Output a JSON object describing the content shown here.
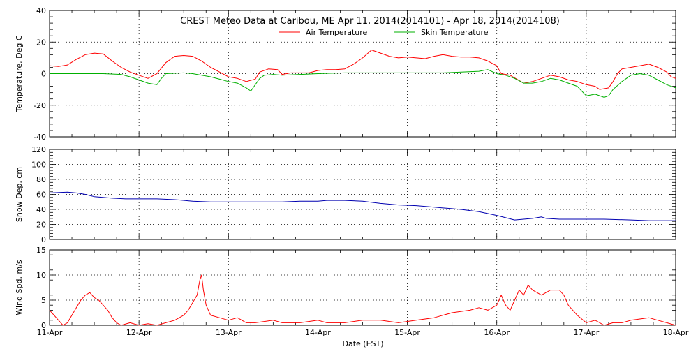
{
  "chart_data": {
    "type": "line",
    "title": "CREST Meteo Data at Caribou, ME   Apr 11, 2014(2014101) - Apr 18, 2014(2014108)",
    "xlabel": "Date (EST)",
    "x_ticks": [
      "11-Apr",
      "12-Apr",
      "13-Apr",
      "14-Apr",
      "15-Apr",
      "16-Apr",
      "17-Apr",
      "18-Apr"
    ],
    "xlim": [
      "11-Apr",
      "18-Apr"
    ],
    "grid": true,
    "colors": {
      "air": "#ff0000",
      "skin": "#00b000",
      "snow": "#0000b0",
      "wind": "#ff0000"
    },
    "panels": [
      {
        "id": "temperature",
        "ylabel": "Temperature, Deg C",
        "ylim": [
          -40,
          40
        ],
        "y_ticks": [
          -40,
          -20,
          0,
          20,
          40
        ],
        "legend": "top-center",
        "series": [
          {
            "name": "Air Temperature",
            "color": "air",
            "points": [
              [
                0,
                5
              ],
              [
                0.1,
                4.5
              ],
              [
                0.2,
                5.5
              ],
              [
                0.3,
                9
              ],
              [
                0.4,
                12
              ],
              [
                0.5,
                13
              ],
              [
                0.6,
                12.5
              ],
              [
                0.7,
                8
              ],
              [
                0.8,
                4
              ],
              [
                0.9,
                1
              ],
              [
                1.0,
                -1
              ],
              [
                1.1,
                -3
              ],
              [
                1.2,
                0
              ],
              [
                1.3,
                7
              ],
              [
                1.4,
                11
              ],
              [
                1.5,
                11.5
              ],
              [
                1.6,
                11
              ],
              [
                1.7,
                8
              ],
              [
                1.8,
                4
              ],
              [
                1.9,
                1
              ],
              [
                2.0,
                -2
              ],
              [
                2.1,
                -3
              ],
              [
                2.2,
                -5
              ],
              [
                2.3,
                -3.5
              ],
              [
                2.35,
                1
              ],
              [
                2.45,
                3
              ],
              [
                2.55,
                2.5
              ],
              [
                2.6,
                -0.5
              ],
              [
                2.7,
                0.5
              ],
              [
                2.8,
                0.5
              ],
              [
                2.9,
                0.5
              ],
              [
                3.0,
                2
              ],
              [
                3.1,
                2.5
              ],
              [
                3.2,
                2.5
              ],
              [
                3.3,
                3
              ],
              [
                3.4,
                6
              ],
              [
                3.5,
                10
              ],
              [
                3.6,
                15
              ],
              [
                3.7,
                13
              ],
              [
                3.8,
                11
              ],
              [
                3.9,
                10
              ],
              [
                4.0,
                10.5
              ],
              [
                4.1,
                10
              ],
              [
                4.2,
                9.5
              ],
              [
                4.3,
                11
              ],
              [
                4.4,
                12
              ],
              [
                4.5,
                11
              ],
              [
                4.6,
                10.5
              ],
              [
                4.7,
                10.5
              ],
              [
                4.8,
                10
              ],
              [
                4.9,
                8
              ],
              [
                5.0,
                5
              ],
              [
                5.05,
                0
              ],
              [
                5.15,
                -1
              ],
              [
                5.3,
                -6
              ],
              [
                5.4,
                -5
              ],
              [
                5.5,
                -3
              ],
              [
                5.6,
                -1
              ],
              [
                5.7,
                -2
              ],
              [
                5.8,
                -4
              ],
              [
                5.9,
                -5
              ],
              [
                6.0,
                -7
              ],
              [
                6.1,
                -8
              ],
              [
                6.15,
                -10
              ],
              [
                6.25,
                -9
              ],
              [
                6.3,
                -5
              ],
              [
                6.35,
                0
              ],
              [
                6.4,
                3
              ],
              [
                6.5,
                4
              ],
              [
                6.6,
                5
              ],
              [
                6.7,
                6
              ],
              [
                6.8,
                4
              ],
              [
                6.9,
                1
              ],
              [
                6.95,
                -2
              ],
              [
                7.0,
                -3
              ]
            ]
          },
          {
            "name": "Skin Temperature",
            "color": "skin",
            "points": [
              [
                0,
                0
              ],
              [
                0.3,
                0
              ],
              [
                0.6,
                0
              ],
              [
                0.8,
                -0.5
              ],
              [
                0.9,
                -2
              ],
              [
                1.0,
                -4
              ],
              [
                1.1,
                -6
              ],
              [
                1.2,
                -7
              ],
              [
                1.25,
                -3
              ],
              [
                1.3,
                0
              ],
              [
                1.5,
                0.5
              ],
              [
                1.6,
                0
              ],
              [
                1.7,
                -1
              ],
              [
                1.8,
                -2
              ],
              [
                1.9,
                -3.5
              ],
              [
                2.0,
                -5
              ],
              [
                2.1,
                -6
              ],
              [
                2.2,
                -9
              ],
              [
                2.25,
                -11
              ],
              [
                2.3,
                -7
              ],
              [
                2.35,
                -3
              ],
              [
                2.4,
                -1
              ],
              [
                2.5,
                -0.5
              ],
              [
                2.6,
                -1
              ],
              [
                2.8,
                -0.5
              ],
              [
                3.0,
                0
              ],
              [
                3.3,
                0.5
              ],
              [
                3.6,
                0.5
              ],
              [
                4.0,
                0.5
              ],
              [
                4.4,
                0.5
              ],
              [
                4.8,
                1.5
              ],
              [
                4.9,
                2.5
              ],
              [
                5.0,
                0
              ],
              [
                5.1,
                -1
              ],
              [
                5.2,
                -3
              ],
              [
                5.3,
                -6
              ],
              [
                5.4,
                -6
              ],
              [
                5.5,
                -5
              ],
              [
                5.6,
                -3
              ],
              [
                5.7,
                -4
              ],
              [
                5.8,
                -6
              ],
              [
                5.9,
                -8
              ],
              [
                6.0,
                -14
              ],
              [
                6.1,
                -13
              ],
              [
                6.2,
                -15
              ],
              [
                6.25,
                -14
              ],
              [
                6.3,
                -10
              ],
              [
                6.4,
                -5
              ],
              [
                6.5,
                -1
              ],
              [
                6.6,
                0
              ],
              [
                6.7,
                -1
              ],
              [
                6.8,
                -4
              ],
              [
                6.9,
                -7
              ],
              [
                7.0,
                -9
              ]
            ]
          }
        ]
      },
      {
        "id": "snow",
        "ylabel": "Snow Dep, cm",
        "ylim": [
          0,
          120
        ],
        "y_ticks": [
          0,
          20,
          40,
          60,
          80,
          100,
          120
        ],
        "series": [
          {
            "name": "",
            "color": "snow",
            "points": [
              [
                0,
                62
              ],
              [
                0.2,
                63
              ],
              [
                0.3,
                62
              ],
              [
                0.4,
                60
              ],
              [
                0.5,
                57
              ],
              [
                0.7,
                55
              ],
              [
                0.85,
                54
              ],
              [
                1.0,
                54
              ],
              [
                1.2,
                54
              ],
              [
                1.4,
                53
              ],
              [
                1.6,
                51
              ],
              [
                1.8,
                50
              ],
              [
                2.0,
                50
              ],
              [
                2.3,
                50
              ],
              [
                2.6,
                50
              ],
              [
                2.8,
                51
              ],
              [
                3.0,
                51
              ],
              [
                3.1,
                52
              ],
              [
                3.3,
                52
              ],
              [
                3.5,
                51
              ],
              [
                3.7,
                48
              ],
              [
                3.9,
                46
              ],
              [
                4.1,
                45
              ],
              [
                4.3,
                43
              ],
              [
                4.5,
                41
              ],
              [
                4.6,
                40
              ],
              [
                4.8,
                37
              ],
              [
                5.0,
                32
              ],
              [
                5.2,
                26
              ],
              [
                5.3,
                27
              ],
              [
                5.4,
                28
              ],
              [
                5.5,
                30
              ],
              [
                5.55,
                28
              ],
              [
                5.7,
                27
              ],
              [
                5.9,
                27
              ],
              [
                6.2,
                27
              ],
              [
                6.5,
                26
              ],
              [
                6.7,
                25
              ],
              [
                7.0,
                25
              ]
            ]
          }
        ]
      },
      {
        "id": "wind",
        "ylabel": "Wind Spd, m/s",
        "ylim": [
          0,
          15
        ],
        "y_ticks": [
          0,
          5,
          10,
          15
        ],
        "series": [
          {
            "name": "",
            "color": "wind",
            "points": [
              [
                0,
                3
              ],
              [
                0.05,
                2
              ],
              [
                0.1,
                1
              ],
              [
                0.15,
                0
              ],
              [
                0.2,
                0.5
              ],
              [
                0.25,
                2
              ],
              [
                0.3,
                3.5
              ],
              [
                0.35,
                5
              ],
              [
                0.4,
                6
              ],
              [
                0.45,
                6.5
              ],
              [
                0.5,
                5.5
              ],
              [
                0.55,
                5
              ],
              [
                0.6,
                4
              ],
              [
                0.65,
                3
              ],
              [
                0.7,
                1.5
              ],
              [
                0.75,
                0.5
              ],
              [
                0.8,
                0
              ],
              [
                0.9,
                0.5
              ],
              [
                1.0,
                0
              ],
              [
                1.1,
                0.3
              ],
              [
                1.2,
                0
              ],
              [
                1.3,
                0.5
              ],
              [
                1.4,
                1
              ],
              [
                1.5,
                2
              ],
              [
                1.55,
                3
              ],
              [
                1.6,
                4.5
              ],
              [
                1.65,
                6
              ],
              [
                1.68,
                9
              ],
              [
                1.7,
                10
              ],
              [
                1.72,
                7
              ],
              [
                1.75,
                4
              ],
              [
                1.8,
                2
              ],
              [
                1.9,
                1.5
              ],
              [
                2.0,
                1
              ],
              [
                2.1,
                1.5
              ],
              [
                2.2,
                0.5
              ],
              [
                2.3,
                0.5
              ],
              [
                2.5,
                1
              ],
              [
                2.6,
                0.5
              ],
              [
                2.8,
                0.5
              ],
              [
                3.0,
                1
              ],
              [
                3.1,
                0.5
              ],
              [
                3.3,
                0.5
              ],
              [
                3.5,
                1
              ],
              [
                3.7,
                1
              ],
              [
                3.9,
                0.5
              ],
              [
                4.1,
                1
              ],
              [
                4.3,
                1.5
              ],
              [
                4.5,
                2.5
              ],
              [
                4.7,
                3
              ],
              [
                4.8,
                3.5
              ],
              [
                4.9,
                3
              ],
              [
                5.0,
                4
              ],
              [
                5.05,
                6
              ],
              [
                5.1,
                4
              ],
              [
                5.15,
                3
              ],
              [
                5.2,
                5
              ],
              [
                5.25,
                7
              ],
              [
                5.3,
                6
              ],
              [
                5.35,
                8
              ],
              [
                5.4,
                7
              ],
              [
                5.5,
                6
              ],
              [
                5.6,
                7
              ],
              [
                5.7,
                7
              ],
              [
                5.75,
                6
              ],
              [
                5.8,
                4
              ],
              [
                5.85,
                3
              ],
              [
                5.9,
                2
              ],
              [
                6.0,
                0.5
              ],
              [
                6.1,
                1
              ],
              [
                6.2,
                0
              ],
              [
                6.3,
                0.5
              ],
              [
                6.4,
                0.5
              ],
              [
                6.5,
                1
              ],
              [
                6.7,
                1.5
              ],
              [
                6.8,
                1
              ],
              [
                6.9,
                0.5
              ],
              [
                7.0,
                0
              ]
            ]
          }
        ]
      }
    ]
  }
}
